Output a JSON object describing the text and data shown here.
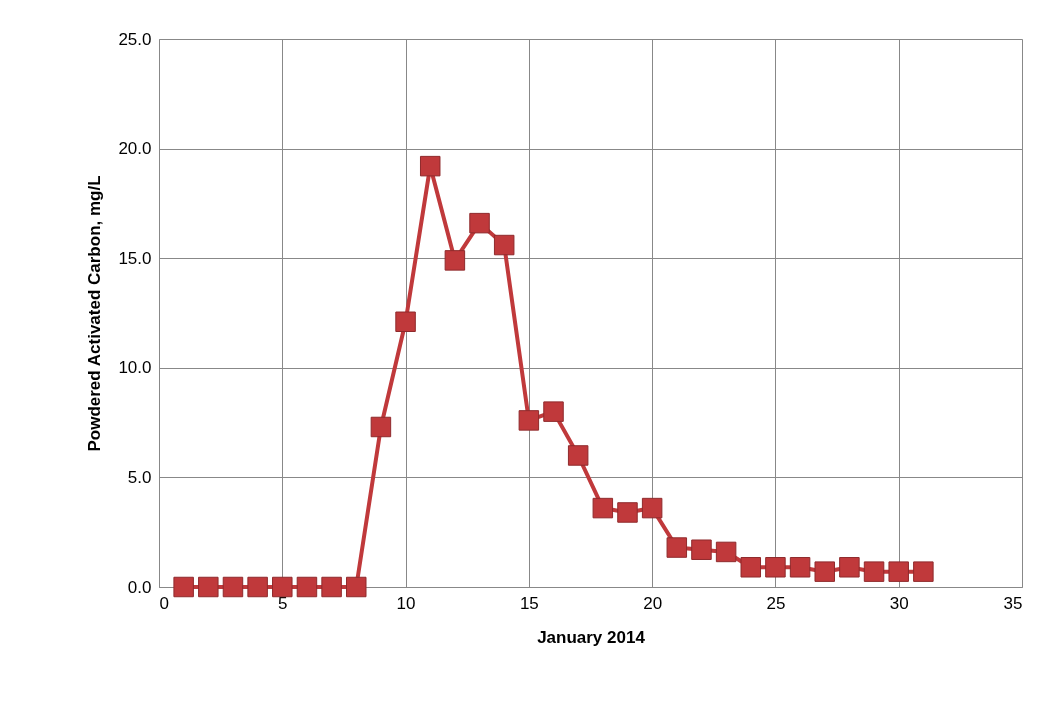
{
  "chart_data": {
    "type": "line",
    "xlabel": "January 2014",
    "ylabel": "Powdered Activated Carbon, mg/L",
    "x": [
      1,
      2,
      3,
      4,
      5,
      6,
      7,
      8,
      9,
      10,
      11,
      12,
      13,
      14,
      15,
      16,
      17,
      18,
      19,
      20,
      21,
      22,
      23,
      24,
      25,
      26,
      27,
      28,
      29,
      30,
      31
    ],
    "series": [
      {
        "color": "#c0393b",
        "values": [
          0,
          0,
          0,
          0,
          0,
          0,
          0,
          0,
          7.3,
          12.1,
          19.2,
          14.9,
          16.6,
          15.6,
          7.6,
          8.0,
          6.0,
          3.6,
          3.4,
          3.6,
          1.8,
          1.7,
          1.6,
          0.9,
          0.9,
          0.9,
          0.7,
          0.9,
          0.7,
          0.7,
          0.7
        ]
      }
    ],
    "xlim": [
      0,
      35
    ],
    "xticks": [
      0,
      5,
      10,
      15,
      20,
      25,
      30,
      35
    ],
    "ylim": [
      0,
      25
    ],
    "yticks": [
      {
        "value": 0,
        "label": "0.0"
      },
      {
        "value": 5,
        "label": "5.0"
      },
      {
        "value": 10,
        "label": "10.0"
      },
      {
        "value": 15,
        "label": "15.0"
      },
      {
        "value": 20,
        "label": "20.0"
      },
      {
        "value": 25,
        "label": "25.0"
      }
    ],
    "grid": true,
    "marker": "square",
    "line_style": "solid"
  }
}
